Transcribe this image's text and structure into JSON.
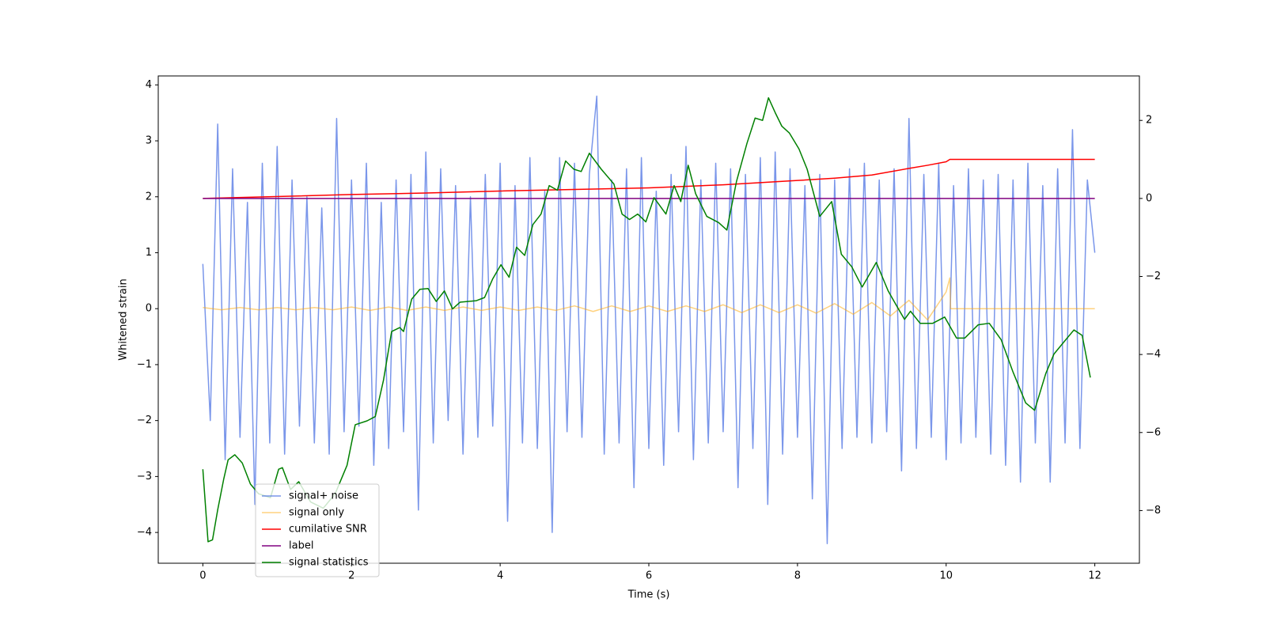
{
  "chart_data": {
    "type": "line",
    "xlabel": "Time (s)",
    "ylabel": "Whitened strain",
    "xlim": [
      -0.6,
      12.6
    ],
    "xticks": [
      0,
      2,
      4,
      6,
      8,
      10,
      12
    ],
    "ylim": [
      -4.55,
      4.16
    ],
    "yticks": [
      {
        "value": -4,
        "label": "−4"
      },
      {
        "value": -3,
        "label": "−3"
      },
      {
        "value": -2,
        "label": "−2"
      },
      {
        "value": -1,
        "label": "−1"
      },
      0,
      1,
      2,
      3,
      4
    ],
    "y2lim": [
      -9.35,
      3.14
    ],
    "y2ticks": [
      {
        "value": -8,
        "label": "−8"
      },
      {
        "value": -6,
        "label": "−6"
      },
      {
        "value": -4,
        "label": "−4"
      },
      {
        "value": -2,
        "label": "−2"
      },
      0,
      2
    ],
    "legend": "best",
    "series": [
      {
        "name": "signal+ noise",
        "color": "#4169e1",
        "opacity": 0.7,
        "x": [
          0,
          0.1,
          0.2,
          0.3,
          0.4,
          0.5,
          0.6,
          0.7,
          0.8,
          0.9,
          1,
          1.1,
          1.2,
          1.3,
          1.4,
          1.5,
          1.6,
          1.7,
          1.8,
          1.9,
          2,
          2.1,
          2.2,
          2.3,
          2.4,
          2.5,
          2.6,
          2.7,
          2.8,
          2.9,
          3,
          3.1,
          3.2,
          3.3,
          3.4,
          3.5,
          3.6,
          3.7,
          3.8,
          3.9,
          4,
          4.1,
          4.2,
          4.3,
          4.4,
          4.5,
          4.6,
          4.7,
          4.8,
          4.9,
          5,
          5.1,
          5.2,
          5.3,
          5.4,
          5.5,
          5.6,
          5.7,
          5.8,
          5.9,
          6,
          6.1,
          6.2,
          6.3,
          6.4,
          6.5,
          6.6,
          6.7,
          6.8,
          6.9,
          7,
          7.1,
          7.2,
          7.3,
          7.4,
          7.5,
          7.6,
          7.7,
          7.8,
          7.9,
          8,
          8.1,
          8.2,
          8.3,
          8.4,
          8.5,
          8.6,
          8.7,
          8.8,
          8.9,
          9,
          9.1,
          9.2,
          9.3,
          9.4,
          9.5,
          9.6,
          9.7,
          9.8,
          9.9,
          10,
          10.1,
          10.2,
          10.3,
          10.4,
          10.5,
          10.6,
          10.7,
          10.8,
          10.9,
          11,
          11.1,
          11.2,
          11.3,
          11.4,
          11.5,
          11.6,
          11.7,
          11.8,
          11.9,
          12
        ],
        "values": [
          0.8,
          -2.0,
          3.3,
          -2.7,
          2.5,
          -2.3,
          1.9,
          -3.5,
          2.6,
          -2.4,
          2.9,
          -2.6,
          2.3,
          -2.1,
          2.0,
          -2.4,
          1.8,
          -2.6,
          3.4,
          -2.2,
          2.3,
          -2.1,
          2.6,
          -2.8,
          1.9,
          -2.5,
          2.3,
          -2.2,
          2.4,
          -3.6,
          2.8,
          -2.4,
          2.5,
          -2.0,
          2.2,
          -2.6,
          2.0,
          -2.3,
          2.4,
          -2.1,
          2.6,
          -3.8,
          2.2,
          -2.4,
          2.7,
          -2.5,
          2.1,
          -4.0,
          2.7,
          -2.2,
          2.6,
          -2.3,
          2.4,
          3.8,
          -2.6,
          2.3,
          -2.4,
          2.5,
          -3.2,
          2.7,
          -2.5,
          2.1,
          -2.8,
          2.4,
          -2.2,
          2.9,
          -2.7,
          2.3,
          -2.4,
          2.6,
          -2.2,
          2.5,
          -3.2,
          2.4,
          -2.5,
          2.7,
          -3.5,
          2.8,
          -2.6,
          2.5,
          -2.3,
          2.2,
          -3.4,
          2.4,
          -4.2,
          2.3,
          -2.5,
          2.5,
          -2.3,
          2.6,
          -2.4,
          2.3,
          -2.2,
          2.5,
          -2.9,
          3.4,
          -2.5,
          2.4,
          -2.3,
          2.6,
          -2.7,
          2.2,
          -2.4,
          2.5,
          -2.3,
          2.3,
          -2.6,
          2.4,
          -2.8,
          2.3,
          -3.1,
          2.6,
          -2.4,
          2.2,
          -3.1,
          2.5,
          -2.4,
          3.2,
          -2.5,
          2.3,
          1.0
        ]
      },
      {
        "name": "signal only",
        "color": "#ffa500",
        "opacity": 0.5,
        "x": [
          0,
          0.25,
          0.5,
          0.75,
          1,
          1.25,
          1.5,
          1.75,
          2,
          2.25,
          2.5,
          2.75,
          3,
          3.25,
          3.5,
          3.75,
          4,
          4.25,
          4.5,
          4.75,
          5,
          5.25,
          5.5,
          5.75,
          6,
          6.25,
          6.5,
          6.75,
          7,
          7.25,
          7.5,
          7.75,
          8,
          8.25,
          8.5,
          8.75,
          9,
          9.25,
          9.5,
          9.75,
          10,
          10.05,
          10.06,
          12
        ],
        "values": [
          0.02,
          -0.02,
          0.02,
          -0.02,
          0.02,
          -0.02,
          0.02,
          -0.02,
          0.03,
          -0.03,
          0.03,
          -0.03,
          0.03,
          -0.03,
          0.03,
          -0.03,
          0.03,
          -0.03,
          0.03,
          -0.03,
          0.05,
          -0.05,
          0.05,
          -0.05,
          0.05,
          -0.05,
          0.05,
          -0.05,
          0.07,
          -0.07,
          0.07,
          -0.07,
          0.07,
          -0.08,
          0.09,
          -0.1,
          0.11,
          -0.13,
          0.15,
          -0.2,
          0.3,
          0.55,
          0,
          0
        ]
      },
      {
        "name": "cumilative SNR",
        "color": "#ff0000",
        "axis": "y2",
        "x": [
          0,
          2,
          3,
          4,
          5,
          6,
          7,
          8,
          8.5,
          9,
          9.5,
          9.75,
          10,
          10.05,
          12
        ],
        "values": [
          0,
          0.1,
          0.14,
          0.19,
          0.23,
          0.27,
          0.35,
          0.46,
          0.52,
          0.6,
          0.77,
          0.85,
          0.94,
          1.0,
          1.0
        ]
      },
      {
        "name": "label",
        "color": "#800080",
        "axis": "y2",
        "x": [
          0,
          12
        ],
        "values": [
          0,
          0
        ]
      },
      {
        "name": "signal statistics",
        "color": "#008000",
        "axis": "y2",
        "x": [
          0,
          0.07,
          0.13,
          0.2,
          0.28,
          0.34,
          0.43,
          0.53,
          0.64,
          0.75,
          0.91,
          1.02,
          1.07,
          1.18,
          1.29,
          1.45,
          1.62,
          1.78,
          1.94,
          2.05,
          2.21,
          2.32,
          2.43,
          2.54,
          2.65,
          2.7,
          2.81,
          2.92,
          3.03,
          3.14,
          3.25,
          3.36,
          3.46,
          3.68,
          3.79,
          3.9,
          4.01,
          4.12,
          4.22,
          4.33,
          4.44,
          4.55,
          4.66,
          4.77,
          4.88,
          4.99,
          5.09,
          5.2,
          5.36,
          5.53,
          5.64,
          5.74,
          5.85,
          5.96,
          6.07,
          6.23,
          6.34,
          6.43,
          6.53,
          6.63,
          6.78,
          6.94,
          7.05,
          7.18,
          7.32,
          7.43,
          7.53,
          7.61,
          7.7,
          7.79,
          7.89,
          8.02,
          8.13,
          8.3,
          8.46,
          8.59,
          8.73,
          8.87,
          9.06,
          9.22,
          9.33,
          9.44,
          9.52,
          9.65,
          9.82,
          9.98,
          10.14,
          10.25,
          10.43,
          10.58,
          10.74,
          10.9,
          11.07,
          11.19,
          11.34,
          11.45,
          11.61,
          11.72,
          11.83,
          11.94
        ],
        "values": [
          -6.94,
          -8.8,
          -8.75,
          -7.98,
          -7.2,
          -6.7,
          -6.57,
          -6.78,
          -7.32,
          -7.57,
          -7.67,
          -6.94,
          -6.9,
          -7.46,
          -7.26,
          -7.78,
          -7.94,
          -7.57,
          -6.84,
          -5.8,
          -5.7,
          -5.59,
          -4.66,
          -3.41,
          -3.31,
          -3.41,
          -2.58,
          -2.33,
          -2.31,
          -2.64,
          -2.37,
          -2.83,
          -2.66,
          -2.62,
          -2.54,
          -2.06,
          -1.7,
          -2.02,
          -1.25,
          -1.46,
          -0.67,
          -0.4,
          0.33,
          0.21,
          0.96,
          0.75,
          0.69,
          1.16,
          0.75,
          0.37,
          -0.4,
          -0.54,
          -0.4,
          -0.6,
          0.02,
          -0.4,
          0.33,
          -0.08,
          0.85,
          0.12,
          -0.46,
          -0.62,
          -0.81,
          0.44,
          1.41,
          2.06,
          2.0,
          2.58,
          2.2,
          1.85,
          1.68,
          1.27,
          0.75,
          -0.46,
          -0.08,
          -1.43,
          -1.75,
          -2.27,
          -1.64,
          -2.37,
          -2.74,
          -3.1,
          -2.89,
          -3.2,
          -3.2,
          -3.04,
          -3.58,
          -3.58,
          -3.24,
          -3.2,
          -3.62,
          -4.45,
          -5.24,
          -5.43,
          -4.49,
          -3.99,
          -3.62,
          -3.37,
          -3.51,
          -4.59
        ]
      }
    ]
  }
}
